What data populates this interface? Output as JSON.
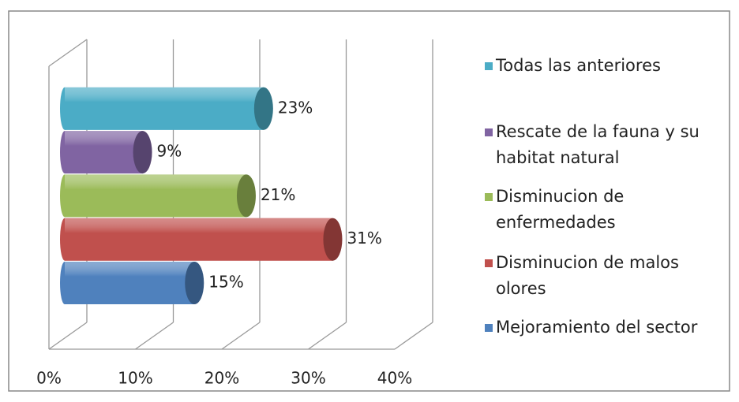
{
  "chart_data": {
    "type": "bar3d",
    "categories": [
      "Mejoramiento del sector",
      "Disminucion de malos olores",
      "Disminucion de enfermedades",
      "Rescate de la fauna y su habitat natural",
      "Todas las anteriores"
    ],
    "values": [
      15,
      31,
      21,
      9,
      23
    ],
    "value_labels": [
      "15%",
      "31%",
      "21%",
      "9%",
      "23%"
    ],
    "colors": [
      "#4f81bd",
      "#c0504d",
      "#9bbb59",
      "#8064a2",
      "#4bacc6"
    ],
    "xlim": [
      0,
      40
    ],
    "xticks": [
      {
        "value": 0,
        "label": "0%"
      },
      {
        "value": 10,
        "label": "10%"
      },
      {
        "value": 20,
        "label": "20%"
      },
      {
        "value": 30,
        "label": "30%"
      },
      {
        "value": 40,
        "label": "40%"
      }
    ],
    "grid": true,
    "legend": "right"
  }
}
